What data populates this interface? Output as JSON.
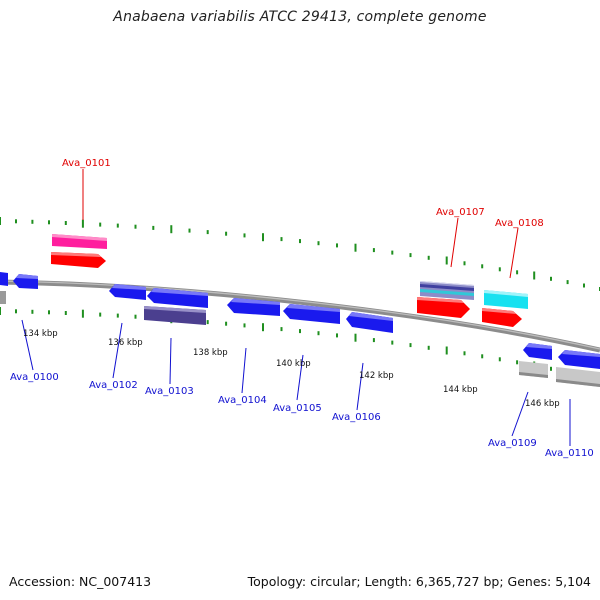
{
  "title": "Anabaena variabilis ATCC 29413, complete genome",
  "footer": {
    "accession": "Accession: NC_007413",
    "summary": "Topology: circular; Length: 6,365,727 bp; Genes: 5,104"
  },
  "colors": {
    "backbone": "#8c8c8c",
    "tick": "#1f8f1f",
    "forward_label": "#e00000",
    "reverse_label": "#1010d0",
    "kbp_label": "#111111"
  },
  "kbp_ticks": [
    "134 kbp",
    "136 kbp",
    "138 kbp",
    "140 kbp",
    "142 kbp",
    "144 kbp",
    "146 kbp"
  ],
  "genes": [
    {
      "id": "Ava_0100",
      "strand": "reverse",
      "color": "#1a1aee"
    },
    {
      "id": "Ava_0101",
      "strand": "forward",
      "color": "#ff1e9e"
    },
    {
      "id": "Ava_0102",
      "strand": "reverse",
      "color": "#1a1aee"
    },
    {
      "id": "Ava_0103",
      "strand": "reverse",
      "color": "#4b3f8f"
    },
    {
      "id": "Ava_0104",
      "strand": "reverse",
      "color": "#1a1aee"
    },
    {
      "id": "Ava_0105",
      "strand": "reverse",
      "color": "#1a1aee"
    },
    {
      "id": "Ava_0106",
      "strand": "reverse",
      "color": "#1a1aee"
    },
    {
      "id": "Ava_0107",
      "strand": "forward",
      "color": "#8c8cc8"
    },
    {
      "id": "Ava_0108",
      "strand": "forward",
      "color": "#17e1f0"
    },
    {
      "id": "Ava_0109",
      "strand": "reverse",
      "color": "#c8c8c8"
    },
    {
      "id": "Ava_0110",
      "strand": "reverse",
      "color": "#c8c8c8"
    }
  ]
}
